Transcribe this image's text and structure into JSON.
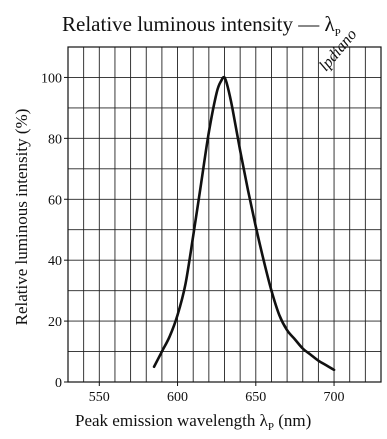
{
  "chart_data": {
    "type": "line",
    "title": "Relative luminous intensity — λ",
    "title_subscript": "P",
    "xlabel": "Peak emission wavelength λ",
    "xlabel_subscript": "P",
    "xlabel_unit": " (nm)",
    "ylabel": "Relative luminous intensity  (%)",
    "xlim": [
      530,
      730
    ],
    "ylim": [
      0,
      110
    ],
    "xticks": [
      550,
      600,
      650,
      700
    ],
    "yticks": [
      0,
      20,
      40,
      60,
      80,
      100
    ],
    "grid": true,
    "x": [
      585,
      590,
      595,
      600,
      605,
      610,
      615,
      620,
      625,
      628,
      630,
      632,
      635,
      640,
      645,
      650,
      655,
      660,
      665,
      670,
      675,
      680,
      685,
      690,
      695,
      700
    ],
    "y": [
      5,
      10,
      15,
      22,
      32,
      48,
      65,
      82,
      95,
      99,
      100,
      97,
      90,
      76,
      63,
      51,
      40,
      30,
      22,
      17,
      14,
      11,
      9,
      7,
      5.5,
      4
    ],
    "line_color": "#111111",
    "grid_color": "#222222"
  },
  "watermark": {
    "text": "lpdiano",
    "color": "#f2a8a8"
  }
}
